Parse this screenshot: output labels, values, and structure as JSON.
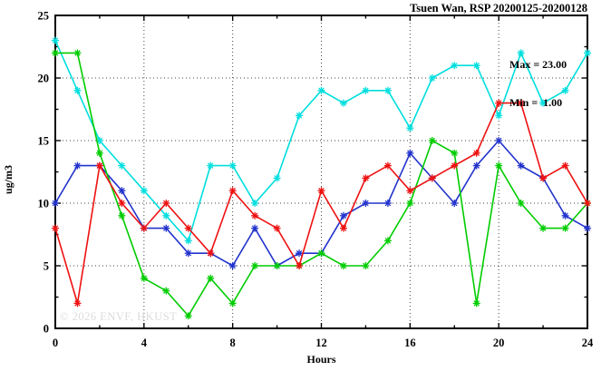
{
  "title": "Tsuen Wan, RSP 20200125-20200128",
  "stats": {
    "max_label": "Max = 23.00",
    "min_label": "Min =  1.00"
  },
  "watermark": "© 2026 ENVF, HKUST",
  "colors": {
    "axis": "#000000",
    "grid": "#444444",
    "watermark": "#dcdcdc"
  },
  "chart_data": {
    "type": "line",
    "title": "Tsuen Wan, RSP 20200125-20200128",
    "xlabel": "Hours",
    "ylabel": "ug/m3",
    "xlim": [
      0,
      24
    ],
    "ylim": [
      0,
      25
    ],
    "xticks": [
      0,
      4,
      8,
      12,
      16,
      20,
      24
    ],
    "yticks": [
      0,
      5,
      10,
      15,
      20,
      25
    ],
    "x_minor_step": 2,
    "y_minor_step": 2.5,
    "grid": true,
    "legend_position": "none",
    "annotations": {
      "max": 23.0,
      "min": 1.0
    },
    "x": [
      0,
      1,
      2,
      3,
      4,
      5,
      6,
      7,
      8,
      9,
      10,
      11,
      12,
      13,
      14,
      15,
      16,
      17,
      18,
      19,
      20,
      21,
      22,
      23,
      24
    ],
    "series": [
      {
        "name": "red",
        "color": "#ee1111",
        "values": [
          8,
          2,
          13,
          10,
          8,
          10,
          8,
          6,
          11,
          9,
          8,
          5,
          11,
          8,
          12,
          13,
          11,
          12,
          13,
          14,
          18,
          18,
          12,
          13,
          10
        ]
      },
      {
        "name": "green",
        "color": "#00cc00",
        "values": [
          22,
          22,
          14,
          9,
          4,
          3,
          1,
          4,
          2,
          5,
          5,
          5,
          6,
          5,
          5,
          7,
          10,
          15,
          14,
          2,
          13,
          10,
          8,
          8,
          10
        ]
      },
      {
        "name": "blue",
        "color": "#2233cc",
        "values": [
          10,
          13,
          13,
          11,
          8,
          8,
          6,
          6,
          5,
          8,
          5,
          6,
          6,
          9,
          10,
          10,
          14,
          12,
          10,
          13,
          15,
          13,
          12,
          9,
          8
        ]
      },
      {
        "name": "cyan",
        "color": "#00dede",
        "values": [
          23,
          19,
          15,
          13,
          11,
          9,
          7,
          13,
          13,
          10,
          12,
          17,
          19,
          18,
          19,
          19,
          16,
          20,
          21,
          21,
          17,
          22,
          18,
          19,
          22
        ]
      }
    ]
  }
}
